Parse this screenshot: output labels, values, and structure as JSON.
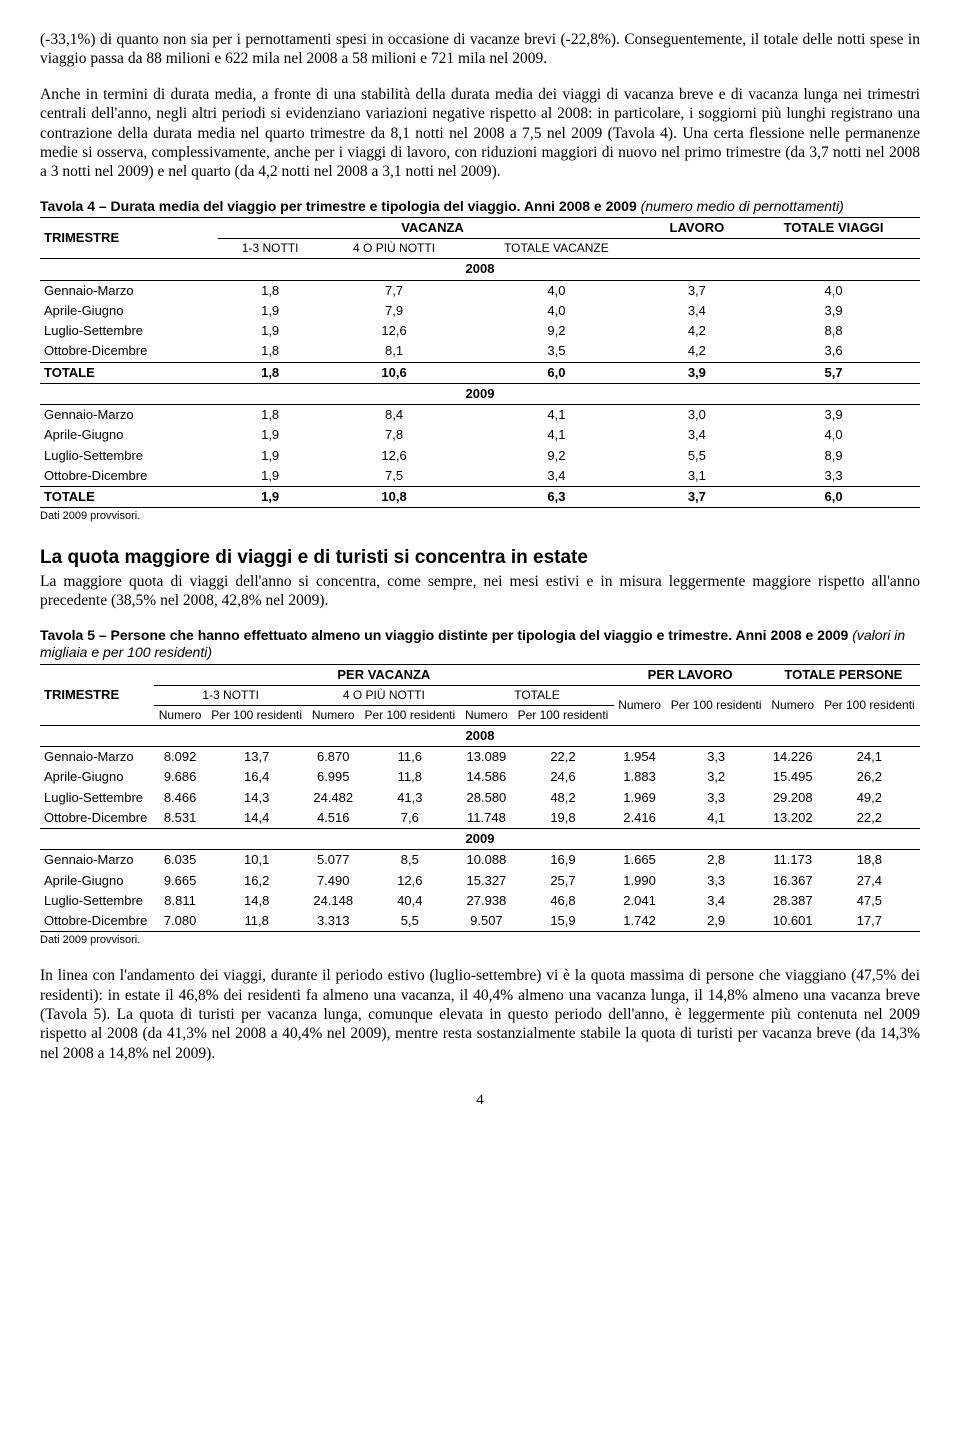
{
  "paragraphs": {
    "p1": "(-33,1%) di quanto non sia per i pernottamenti spesi in occasione di vacanze brevi (-22,8%). Conseguentemente, il totale delle notti spese in viaggio passa da 88 milioni e 622 mila nel 2008 a 58 milioni e 721 mila nel 2009.",
    "p2": "Anche in termini di durata media, a fronte di una stabilità della durata media dei viaggi di vacanza breve e di vacanza lunga nei trimestri centrali dell'anno, negli altri periodi si evidenziano variazioni negative rispetto al 2008: in particolare, i soggiorni più lunghi registrano una contrazione della durata media nel quarto trimestre da 8,1 notti nel 2008 a 7,5 nel 2009 (Tavola 4). Una certa flessione nelle permanenze medie si osserva, complessivamente, anche per i viaggi di lavoro, con riduzioni maggiori di nuovo nel primo trimestre (da 3,7 notti nel 2008 a 3 notti nel 2009) e nel quarto (da 4,2 notti nel 2008 a 3,1 notti nel 2009).",
    "p3": "La maggiore quota di viaggi dell'anno si concentra, come sempre, nei mesi estivi e in misura leggermente maggiore rispetto all'anno precedente (38,5% nel 2008, 42,8% nel 2009).",
    "p4": "In linea con l'andamento dei viaggi, durante il periodo estivo (luglio-settembre) vi è la quota massima di persone che viaggiano (47,5% dei residenti): in estate il 46,8% dei residenti fa almeno una vacanza, il 40,4% almeno una vacanza lunga, il 14,8% almeno una vacanza breve (Tavola 5). La quota di turisti per vacanza lunga, comunque elevata in questo periodo dell'anno, è leggermente più contenuta nel 2009 rispetto al 2008 (da 41,3% nel 2008 a 40,4% nel 2009), mentre resta sostanzialmente stabile la quota di turisti per vacanza breve (da 14,3% nel 2008 a 14,8% nel 2009)."
  },
  "section_heading": "La quota maggiore di viaggi e di turisti si concentra in estate",
  "footnote": "Dati 2009 provvisori.",
  "page_number": "4",
  "table4": {
    "title_bold": "Tavola 4 – Durata media del viaggio per trimestre e tipologia del viaggio. Anni 2008 e 2009 ",
    "title_ital": "(numero medio di pernottamenti)",
    "col_trimestre": "TRIMESTRE",
    "col_vacanza": "VACANZA",
    "col_lavoro": "LAVORO",
    "col_totale": "TOTALE VIAGGI",
    "sub_13": "1-3 NOTTI",
    "sub_4p": "4 O PIÙ NOTTI",
    "sub_totv": "TOTALE VACANZE",
    "year2008": "2008",
    "year2009": "2009",
    "rows2008": [
      {
        "label": "Gennaio-Marzo",
        "v": [
          "1,8",
          "7,7",
          "4,0",
          "3,7",
          "4,0"
        ]
      },
      {
        "label": "Aprile-Giugno",
        "v": [
          "1,9",
          "7,9",
          "4,0",
          "3,4",
          "3,9"
        ]
      },
      {
        "label": "Luglio-Settembre",
        "v": [
          "1,9",
          "12,6",
          "9,2",
          "4,2",
          "8,8"
        ]
      },
      {
        "label": "Ottobre-Dicembre",
        "v": [
          "1,8",
          "8,1",
          "3,5",
          "4,2",
          "3,6"
        ]
      }
    ],
    "total2008": {
      "label": "TOTALE",
      "v": [
        "1,8",
        "10,6",
        "6,0",
        "3,9",
        "5,7"
      ]
    },
    "rows2009": [
      {
        "label": "Gennaio-Marzo",
        "v": [
          "1,8",
          "8,4",
          "4,1",
          "3,0",
          "3,9"
        ]
      },
      {
        "label": "Aprile-Giugno",
        "v": [
          "1,9",
          "7,8",
          "4,1",
          "3,4",
          "4,0"
        ]
      },
      {
        "label": "Luglio-Settembre",
        "v": [
          "1,9",
          "12,6",
          "9,2",
          "5,5",
          "8,9"
        ]
      },
      {
        "label": "Ottobre-Dicembre",
        "v": [
          "1,9",
          "7,5",
          "3,4",
          "3,1",
          "3,3"
        ]
      }
    ],
    "total2009": {
      "label": "TOTALE",
      "v": [
        "1,9",
        "10,8",
        "6,3",
        "3,7",
        "6,0"
      ]
    }
  },
  "table5": {
    "title_bold": "Tavola 5 – Persone che hanno effettuato almeno un viaggio distinte per tipologia del viaggio e trimestre. Anni 2008 e 2009 ",
    "title_ital": "(valori in migliaia e per 100 residenti)",
    "col_trimestre": "TRIMESTRE",
    "col_vacanza": "PER VACANZA",
    "col_lavoro": "PER LAVORO",
    "col_totpers": "TOTALE PERSONE",
    "sub_13": "1-3 NOTTI",
    "sub_4p": "4 O PIÙ NOTTI",
    "sub_tot": "TOTALE",
    "lbl_numero": "Numero",
    "lbl_per100": "Per 100 residenti",
    "year2008": "2008",
    "year2009": "2009",
    "rows2008": [
      {
        "label": "Gennaio-Marzo",
        "v": [
          "8.092",
          "13,7",
          "6.870",
          "11,6",
          "13.089",
          "22,2",
          "1.954",
          "3,3",
          "14.226",
          "24,1"
        ]
      },
      {
        "label": "Aprile-Giugno",
        "v": [
          "9.686",
          "16,4",
          "6.995",
          "11,8",
          "14.586",
          "24,6",
          "1.883",
          "3,2",
          "15.495",
          "26,2"
        ]
      },
      {
        "label": "Luglio-Settembre",
        "v": [
          "8.466",
          "14,3",
          "24.482",
          "41,3",
          "28.580",
          "48,2",
          "1.969",
          "3,3",
          "29.208",
          "49,2"
        ]
      },
      {
        "label": "Ottobre-Dicembre",
        "v": [
          "8.531",
          "14,4",
          "4.516",
          "7,6",
          "11.748",
          "19,8",
          "2.416",
          "4,1",
          "13.202",
          "22,2"
        ]
      }
    ],
    "rows2009": [
      {
        "label": "Gennaio-Marzo",
        "v": [
          "6.035",
          "10,1",
          "5.077",
          "8,5",
          "10.088",
          "16,9",
          "1.665",
          "2,8",
          "11.173",
          "18,8"
        ]
      },
      {
        "label": "Aprile-Giugno",
        "v": [
          "9.665",
          "16,2",
          "7.490",
          "12,6",
          "15.327",
          "25,7",
          "1.990",
          "3,3",
          "16.367",
          "27,4"
        ]
      },
      {
        "label": "Luglio-Settembre",
        "v": [
          "8.811",
          "14,8",
          "24.148",
          "40,4",
          "27.938",
          "46,8",
          "2.041",
          "3,4",
          "28.387",
          "47,5"
        ]
      },
      {
        "label": "Ottobre-Dicembre",
        "v": [
          "7.080",
          "11,8",
          "3.313",
          "5,5",
          "9.507",
          "15,9",
          "1.742",
          "2,9",
          "10.601",
          "17,7"
        ]
      }
    ]
  }
}
